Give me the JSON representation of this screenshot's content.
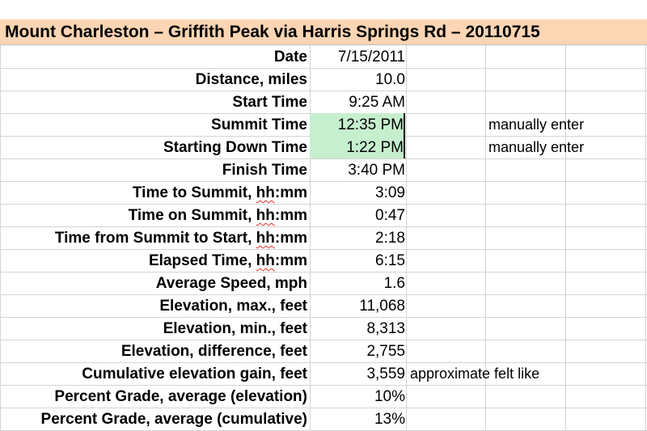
{
  "title": "Mount Charleston – Griffith Peak via Harris Springs Rd – 20110715",
  "rows": [
    {
      "label": "Date",
      "value": "7/15/2011",
      "note": ""
    },
    {
      "label": "Distance, miles",
      "value": "10.0",
      "note": ""
    },
    {
      "label": "Start Time",
      "value": "9:25 AM",
      "note": ""
    },
    {
      "label": "Summit Time",
      "value": "12:35 PM",
      "note": "manually enter"
    },
    {
      "label": "Starting Down Time",
      "value": "1:22 PM",
      "note": "manually enter"
    },
    {
      "label": "Finish Time",
      "value": "3:40 PM",
      "note": ""
    },
    {
      "label": "Time to Summit, hh:mm",
      "value": "3:09",
      "note": ""
    },
    {
      "label": "Time on Summit, hh:mm",
      "value": "0:47",
      "note": ""
    },
    {
      "label": "Time from Summit to Start, hh:mm",
      "value": "2:18",
      "note": ""
    },
    {
      "label": "Elapsed Time, hh:mm",
      "value": "6:15",
      "note": ""
    },
    {
      "label": "Average Speed, mph",
      "value": "1.6",
      "note": ""
    },
    {
      "label": "Elevation, max., feet",
      "value": "11,068",
      "note": ""
    },
    {
      "label": "Elevation, min., feet",
      "value": "8,313",
      "note": ""
    },
    {
      "label": "Elevation, difference, feet",
      "value": "2,755",
      "note": ""
    },
    {
      "label": "Cumulative elevation gain, feet",
      "value": "3,559",
      "note": "approximate felt like"
    },
    {
      "label": "Percent Grade, average (elevation)",
      "value": "10%",
      "note": ""
    },
    {
      "label": "Percent Grade, average (cumulative)",
      "value": "13%",
      "note": ""
    }
  ],
  "colors": {
    "title_fill": "#fcd5b4",
    "highlight_fill": "#c6efce",
    "gridline": "#d4d4d4"
  }
}
